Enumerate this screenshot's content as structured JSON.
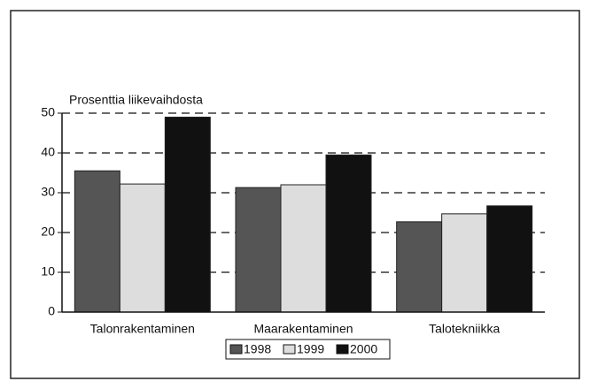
{
  "chart_data": {
    "type": "bar",
    "ylabel": "Prosenttia liikevaihdosta",
    "categories": [
      "Talonrakentaminen",
      "Maarakentaminen",
      "Talotekniikka"
    ],
    "series": [
      {
        "name": "1998",
        "color": "#555555",
        "values": [
          35.5,
          31.3,
          22.7
        ]
      },
      {
        "name": "1999",
        "color": "#dddddd",
        "values": [
          32.2,
          32,
          24.7
        ]
      },
      {
        "name": "2000",
        "color": "#111111",
        "values": [
          49,
          39.5,
          26.7
        ]
      }
    ],
    "ylim": [
      0,
      50
    ],
    "yticks": [
      0,
      10,
      20,
      30,
      40,
      50
    ],
    "grid": true,
    "legend": "bottom"
  }
}
